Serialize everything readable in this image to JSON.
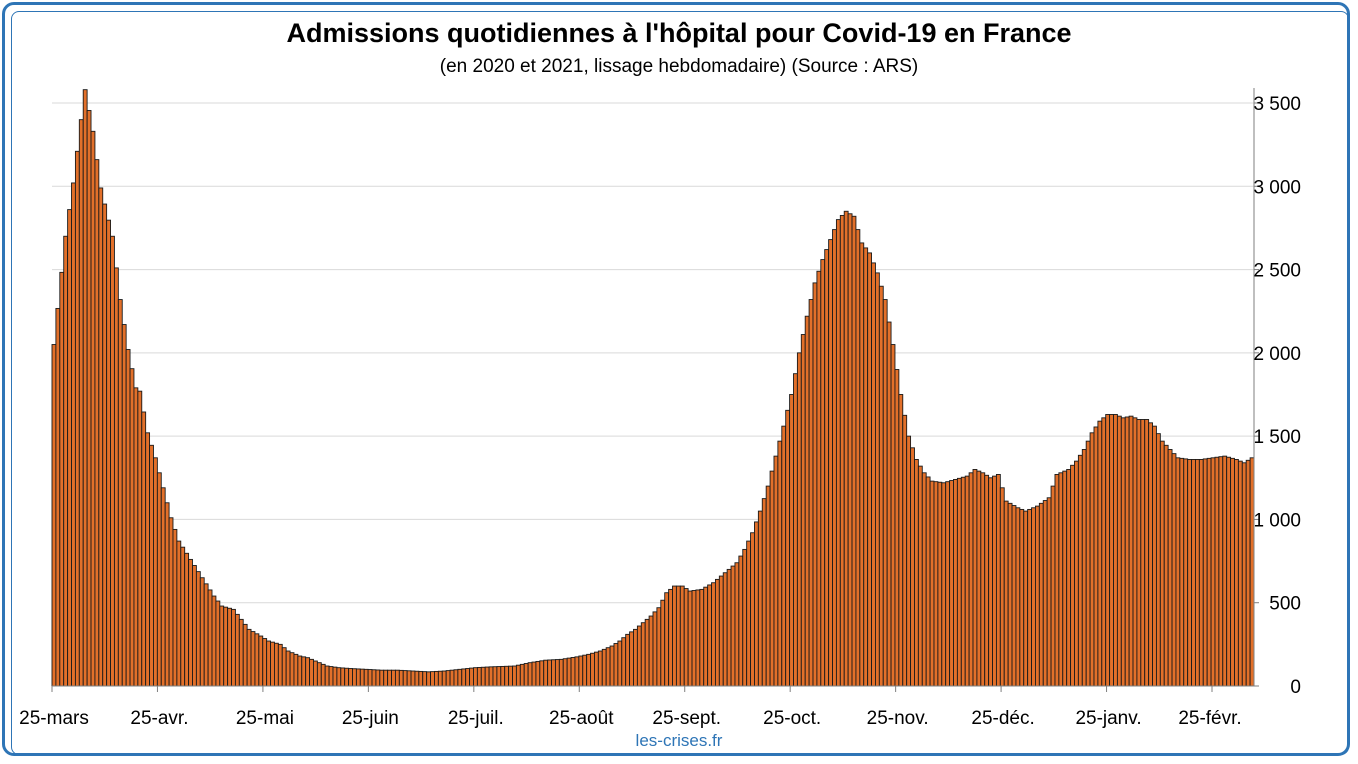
{
  "title": "Admissions quotidiennes à l'hôpital pour Covid-19 en France",
  "subtitle": "(en 2020 et 2021, lissage hebdomadaire) (Source : ARS)",
  "credit": "les-crises.fr",
  "colors": {
    "bar_fill": "#e2702a",
    "bar_stroke": "#1a1a1a",
    "frame": "#2e75b6",
    "grid": "#d9d9d9"
  },
  "chart_data": {
    "type": "bar",
    "title": "Admissions quotidiennes à l'hôpital pour Covid-19 en France",
    "subtitle": "(en 2020 et 2021, lissage hebdomadaire) (Source : ARS)",
    "xlabel": "",
    "ylabel": "",
    "ylim": [
      0,
      3500
    ],
    "y_axis_side": "right",
    "grid": "horizontal",
    "y_ticks": [
      0,
      500,
      1000,
      1500,
      2000,
      2500,
      3000,
      3500
    ],
    "y_tick_labels": [
      "0",
      "500",
      "1 000",
      "1 500",
      "2 000",
      "2 500",
      "3 000",
      "3 500"
    ],
    "x_tick_labels": [
      "25-mars",
      "25-avr.",
      "25-mai",
      "25-juin",
      "25-juil.",
      "25-août",
      "25-sept.",
      "25-oct.",
      "25-nov.",
      "25-déc.",
      "25-janv.",
      "25-févr."
    ],
    "anchors": [
      [
        0,
        2050
      ],
      [
        3,
        2700
      ],
      [
        5,
        3020
      ],
      [
        7,
        3400
      ],
      [
        8,
        3580
      ],
      [
        10,
        3330
      ],
      [
        12,
        2990
      ],
      [
        15,
        2700
      ],
      [
        17,
        2320
      ],
      [
        19,
        2020
      ],
      [
        21,
        1790
      ],
      [
        22,
        1770
      ],
      [
        24,
        1520
      ],
      [
        26,
        1370
      ],
      [
        28,
        1190
      ],
      [
        30,
        1010
      ],
      [
        32,
        870
      ],
      [
        35,
        760
      ],
      [
        38,
        650
      ],
      [
        41,
        540
      ],
      [
        43,
        480
      ],
      [
        46,
        460
      ],
      [
        48,
        400
      ],
      [
        50,
        340
      ],
      [
        53,
        300
      ],
      [
        55,
        270
      ],
      [
        58,
        250
      ],
      [
        60,
        210
      ],
      [
        63,
        180
      ],
      [
        65,
        170
      ],
      [
        68,
        140
      ],
      [
        70,
        120
      ],
      [
        73,
        110
      ],
      [
        76,
        105
      ],
      [
        80,
        100
      ],
      [
        84,
        95
      ],
      [
        88,
        95
      ],
      [
        92,
        90
      ],
      [
        96,
        85
      ],
      [
        100,
        90
      ],
      [
        104,
        100
      ],
      [
        108,
        110
      ],
      [
        112,
        115
      ],
      [
        118,
        120
      ],
      [
        122,
        140
      ],
      [
        126,
        155
      ],
      [
        130,
        160
      ],
      [
        134,
        175
      ],
      [
        137,
        190
      ],
      [
        140,
        210
      ],
      [
        143,
        240
      ],
      [
        145,
        270
      ],
      [
        147,
        310
      ],
      [
        149,
        340
      ],
      [
        151,
        380
      ],
      [
        153,
        420
      ],
      [
        155,
        470
      ],
      [
        157,
        560
      ],
      [
        159,
        600
      ],
      [
        161,
        600
      ],
      [
        163,
        570
      ],
      [
        166,
        580
      ],
      [
        169,
        620
      ],
      [
        172,
        680
      ],
      [
        175,
        740
      ],
      [
        177,
        820
      ],
      [
        179,
        920
      ],
      [
        181,
        1050
      ],
      [
        183,
        1200
      ],
      [
        185,
        1380
      ],
      [
        187,
        1560
      ],
      [
        189,
        1750
      ],
      [
        191,
        2000
      ],
      [
        193,
        2220
      ],
      [
        195,
        2420
      ],
      [
        197,
        2560
      ],
      [
        199,
        2680
      ],
      [
        201,
        2800
      ],
      [
        203,
        2850
      ],
      [
        205,
        2820
      ],
      [
        207,
        2660
      ],
      [
        209,
        2600
      ],
      [
        211,
        2480
      ],
      [
        213,
        2320
      ],
      [
        215,
        2050
      ],
      [
        217,
        1750
      ],
      [
        219,
        1500
      ],
      [
        221,
        1360
      ],
      [
        223,
        1280
      ],
      [
        225,
        1230
      ],
      [
        228,
        1220
      ],
      [
        231,
        1240
      ],
      [
        234,
        1260
      ],
      [
        236,
        1300
      ],
      [
        238,
        1280
      ],
      [
        240,
        1250
      ],
      [
        242,
        1270
      ],
      [
        244,
        1110
      ],
      [
        247,
        1070
      ],
      [
        249,
        1050
      ],
      [
        252,
        1080
      ],
      [
        255,
        1130
      ],
      [
        257,
        1270
      ],
      [
        260,
        1300
      ],
      [
        262,
        1350
      ],
      [
        264,
        1420
      ],
      [
        266,
        1520
      ],
      [
        268,
        1590
      ],
      [
        270,
        1630
      ],
      [
        272,
        1630
      ],
      [
        274,
        1610
      ],
      [
        276,
        1620
      ],
      [
        278,
        1600
      ],
      [
        280,
        1600
      ],
      [
        282,
        1560
      ],
      [
        284,
        1470
      ],
      [
        286,
        1420
      ],
      [
        288,
        1370
      ],
      [
        291,
        1360
      ],
      [
        294,
        1360
      ],
      [
        297,
        1370
      ],
      [
        300,
        1380
      ],
      [
        303,
        1360
      ],
      [
        305,
        1340
      ],
      [
        307,
        1370
      ]
    ],
    "n_days": 308
  }
}
